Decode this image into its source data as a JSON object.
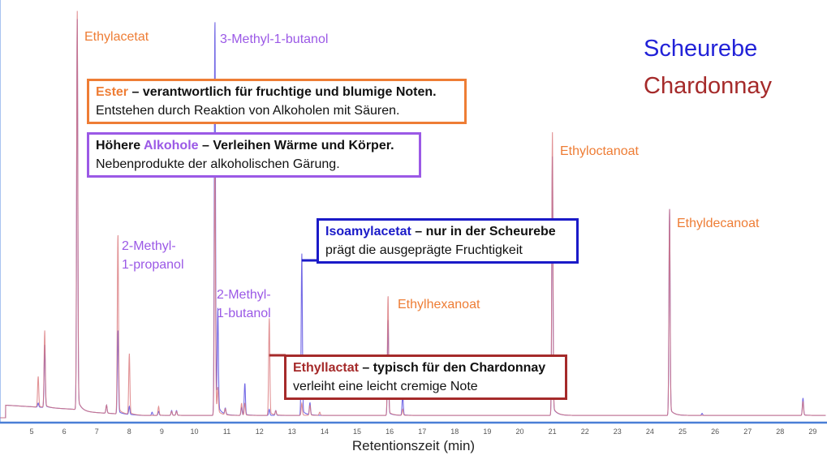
{
  "colors": {
    "scheurebe": "#2222d8",
    "chardonnay": "#a52a2a",
    "ester": "#ee7d35",
    "alkohol": "#9b59e6",
    "axis": "#4a7fd6"
  },
  "legend": [
    {
      "name": "Scheurebe",
      "color": "#2222d8"
    },
    {
      "name": "Chardonnay",
      "color": "#a52a2a"
    }
  ],
  "peak_labels": {
    "ethylacetat": "Ethylacetat",
    "methylbutanol3": "3-Methyl-1-butanol",
    "methylpropanol_1": "2-Methyl-",
    "methylpropanol_2": "1-propanol",
    "methylbutanol2_1": "2-Methyl-",
    "methylbutanol2_2": "1-butanol",
    "ethylhexanoat": "Ethylhexanoat",
    "ethyloctanoat": "Ethyloctanoat",
    "ethyldecanoat": "Ethyldecanoat"
  },
  "annotations": {
    "ester": {
      "key": "Ester",
      "title": " – verantwortlich für fruchtige und blumige Noten.",
      "text": "Entstehen durch Reaktion von Alkoholen mit Säuren."
    },
    "alkohole": {
      "pre": "Höhere ",
      "key": "Alkohole",
      "title": " – Verleihen Wärme und Körper.",
      "text": "Nebenprodukte der alkoholischen Gärung."
    },
    "isoamyl": {
      "key": "Isoamylacetat",
      "title": " – nur in der Scheurebe",
      "text": "prägt die ausgeprägte Fruchtigkeit"
    },
    "ethyllactat": {
      "key": "Ethyllactat",
      "title": " – typisch für den Chardonnay",
      "text": "verleiht eine leicht cremige Note"
    }
  },
  "chart_data": {
    "type": "line",
    "title": "",
    "xlabel": "Retentionszeit (min)",
    "ylabel": "",
    "xlim": [
      4.03,
      29.4
    ],
    "xticks": [
      5,
      6,
      7,
      8,
      9,
      10,
      11,
      12,
      13,
      14,
      15,
      16,
      17,
      18,
      19,
      20,
      21,
      22,
      23,
      24,
      25,
      26,
      27,
      28,
      29
    ],
    "ylim": [
      0,
      100
    ],
    "grid": false,
    "legend_position": "top-right",
    "series": [
      {
        "name": "Scheurebe",
        "color": "#5b4fe0",
        "peaks": [
          [
            5.2,
            1
          ],
          [
            5.4,
            15.5
          ],
          [
            6.4,
            97
          ],
          [
            7.3,
            2
          ],
          [
            7.65,
            21
          ],
          [
            8.0,
            2
          ],
          [
            8.7,
            0.8
          ],
          [
            8.9,
            1
          ],
          [
            9.3,
            1.2
          ],
          [
            9.45,
            1.2
          ],
          [
            10.63,
            99
          ],
          [
            10.72,
            25
          ],
          [
            10.95,
            1.5
          ],
          [
            11.45,
            2
          ],
          [
            11.55,
            8
          ],
          [
            12.3,
            1.5
          ],
          [
            12.5,
            1.2
          ],
          [
            13.3,
            40
          ],
          [
            13.55,
            3
          ],
          [
            15.95,
            24
          ],
          [
            16.4,
            5
          ],
          [
            21.0,
            64
          ],
          [
            24.6,
            51
          ],
          [
            25.6,
            0.5
          ],
          [
            28.7,
            4.3
          ]
        ]
      },
      {
        "name": "Chardonnay",
        "color": "#d9777a",
        "peaks": [
          [
            5.2,
            7.6
          ],
          [
            5.4,
            19
          ],
          [
            6.4,
            99
          ],
          [
            7.3,
            2
          ],
          [
            7.65,
            45
          ],
          [
            8.0,
            15
          ],
          [
            8.9,
            2.2
          ],
          [
            9.3,
            1
          ],
          [
            9.45,
            1
          ],
          [
            10.63,
            63
          ],
          [
            10.72,
            6
          ],
          [
            10.95,
            1.5
          ],
          [
            11.45,
            3
          ],
          [
            11.55,
            3
          ],
          [
            12.3,
            24
          ],
          [
            12.5,
            1
          ],
          [
            13.3,
            3
          ],
          [
            13.55,
            2.5
          ],
          [
            13.85,
            0.8
          ],
          [
            15.95,
            30
          ],
          [
            16.4,
            1.5
          ],
          [
            21.0,
            70
          ],
          [
            24.6,
            51
          ],
          [
            28.7,
            3.5
          ]
        ]
      }
    ]
  }
}
